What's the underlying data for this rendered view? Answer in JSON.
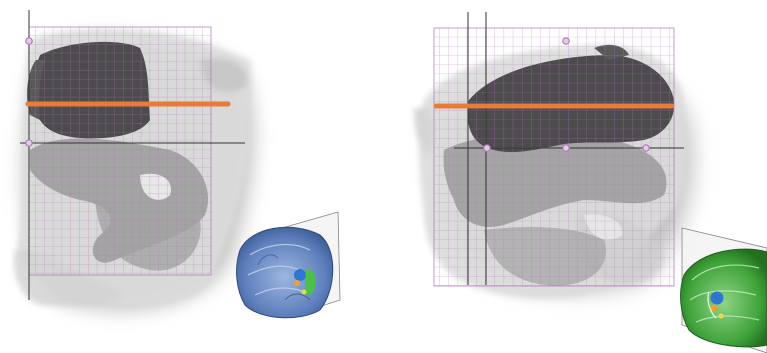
{
  "figure": {
    "panels": [
      {
        "view": "coronal",
        "inset_volume_color": "#6f8fc4",
        "grid_color": "#b07ab8",
        "cut_line_color": "#e87a3a",
        "handle_color": "#b07ab8"
      },
      {
        "view": "sagittal",
        "inset_volume_color": "#3fa33a",
        "grid_color": "#b07ab8",
        "cut_line_color": "#e87a3a",
        "handle_color": "#b07ab8"
      }
    ],
    "colors": {
      "background": "#ffffff",
      "tissue_light": "#d9d9d9",
      "tissue_mid": "#9a9a9a",
      "tissue_dark": "#4d4b4e",
      "crosshair": "#333333",
      "label_blue": "#2f76d2",
      "label_orange": "#f0a030",
      "label_green": "#4ac14a",
      "label_yellow": "#e8d94a"
    }
  }
}
